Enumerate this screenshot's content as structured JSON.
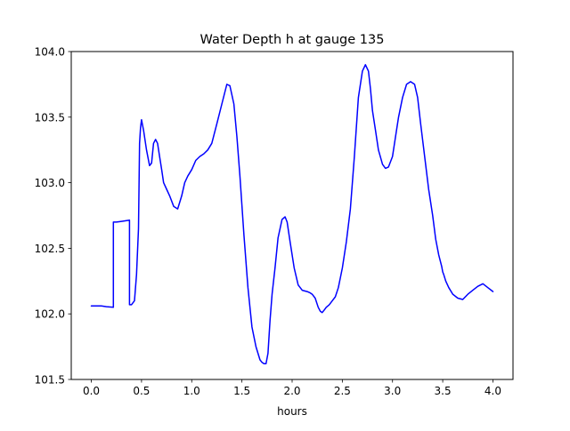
{
  "chart_data": {
    "type": "line",
    "title": "Water Depth h at gauge 135",
    "xlabel": "hours",
    "ylabel": "",
    "xlim": [
      -0.2,
      4.2
    ],
    "ylim": [
      101.5,
      104.0
    ],
    "xticks": [
      0.0,
      0.5,
      1.0,
      1.5,
      2.0,
      2.5,
      3.0,
      3.5,
      4.0
    ],
    "xtick_labels": [
      "0.0",
      "0.5",
      "1.0",
      "1.5",
      "2.0",
      "2.5",
      "3.0",
      "3.5",
      "4.0"
    ],
    "yticks": [
      101.5,
      102.0,
      102.5,
      103.0,
      103.5,
      104.0
    ],
    "ytick_labels": [
      "101.5",
      "102.0",
      "102.5",
      "103.0",
      "103.5",
      "104.0"
    ],
    "grid": false,
    "legend": "none",
    "series": [
      {
        "color": "#0000ff",
        "x": [
          0.0,
          0.1,
          0.15,
          0.22,
          0.22,
          0.25,
          0.3,
          0.38,
          0.38,
          0.4,
          0.43,
          0.45,
          0.47,
          0.48,
          0.49,
          0.5,
          0.52,
          0.55,
          0.58,
          0.6,
          0.62,
          0.64,
          0.66,
          0.68,
          0.7,
          0.72,
          0.75,
          0.78,
          0.82,
          0.86,
          0.9,
          0.93,
          0.96,
          1.0,
          1.04,
          1.08,
          1.12,
          1.16,
          1.2,
          1.25,
          1.3,
          1.35,
          1.38,
          1.42,
          1.45,
          1.48,
          1.52,
          1.56,
          1.6,
          1.64,
          1.68,
          1.7,
          1.72,
          1.74,
          1.76,
          1.78,
          1.8,
          1.83,
          1.86,
          1.9,
          1.93,
          1.95,
          1.98,
          2.02,
          2.06,
          2.1,
          2.15,
          2.18,
          2.2,
          2.23,
          2.26,
          2.28,
          2.3,
          2.32,
          2.34,
          2.37,
          2.4,
          2.43,
          2.46,
          2.5,
          2.54,
          2.58,
          2.62,
          2.66,
          2.7,
          2.73,
          2.76,
          2.78,
          2.8,
          2.83,
          2.86,
          2.9,
          2.93,
          2.96,
          3.0,
          3.03,
          3.06,
          3.1,
          3.14,
          3.18,
          3.22,
          3.25,
          3.28,
          3.32,
          3.36,
          3.4,
          3.43,
          3.46,
          3.49,
          3.5,
          3.51,
          3.53,
          3.56,
          3.6,
          3.65,
          3.7,
          3.75,
          3.8,
          3.85,
          3.9,
          3.95,
          4.0
        ],
        "y": [
          102.06,
          102.06,
          102.055,
          102.05,
          102.7,
          102.7,
          102.705,
          102.715,
          102.07,
          102.07,
          102.1,
          102.3,
          102.65,
          103.3,
          103.42,
          103.48,
          103.4,
          103.25,
          103.13,
          103.15,
          103.3,
          103.33,
          103.3,
          103.2,
          103.1,
          103.0,
          102.95,
          102.9,
          102.82,
          102.8,
          102.9,
          103.0,
          103.05,
          103.1,
          103.17,
          103.2,
          103.22,
          103.25,
          103.3,
          103.45,
          103.6,
          103.75,
          103.74,
          103.6,
          103.35,
          103.05,
          102.6,
          102.2,
          101.9,
          101.75,
          101.65,
          101.63,
          101.62,
          101.62,
          101.7,
          101.95,
          102.15,
          102.35,
          102.58,
          102.72,
          102.74,
          102.7,
          102.55,
          102.35,
          102.22,
          102.18,
          102.17,
          102.16,
          102.15,
          102.12,
          102.05,
          102.02,
          102.01,
          102.03,
          102.05,
          102.07,
          102.1,
          102.13,
          102.2,
          102.35,
          102.55,
          102.8,
          103.2,
          103.65,
          103.85,
          103.9,
          103.85,
          103.72,
          103.55,
          103.4,
          103.25,
          103.14,
          103.11,
          103.12,
          103.2,
          103.35,
          103.5,
          103.65,
          103.75,
          103.77,
          103.75,
          103.65,
          103.45,
          103.2,
          102.95,
          102.75,
          102.57,
          102.45,
          102.36,
          102.32,
          102.3,
          102.25,
          102.2,
          102.15,
          102.12,
          102.11,
          102.15,
          102.18,
          102.21,
          102.23,
          102.2,
          102.17
        ]
      }
    ]
  }
}
